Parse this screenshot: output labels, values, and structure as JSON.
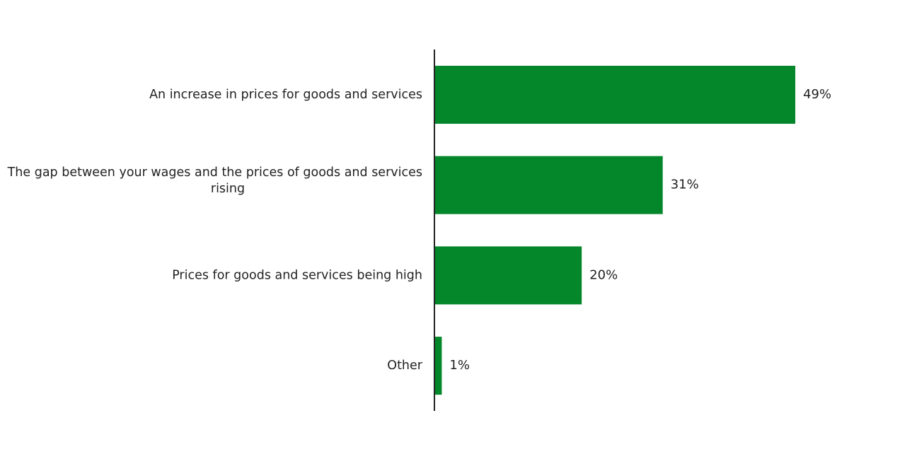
{
  "chart_data": {
    "type": "bar",
    "orientation": "horizontal",
    "categories": [
      "An increase in prices for goods and services",
      "The gap between your wages and the prices of goods and services rising",
      "Prices for goods and services being high",
      "Other"
    ],
    "category_lines": [
      [
        "An increase in prices for goods and services"
      ],
      [
        "The gap between your wages and the prices of goods and services",
        "rising"
      ],
      [
        "Prices for goods and services being high"
      ],
      [
        "Other"
      ]
    ],
    "values": [
      49,
      31,
      20,
      1
    ],
    "value_labels": [
      "49%",
      "31%",
      "20%",
      "1%"
    ],
    "unit": "%",
    "bar_color": "#04872b",
    "axis_color": "#222222",
    "grid": false,
    "legend": "none",
    "title": "",
    "xlabel": "",
    "ylabel": ""
  }
}
